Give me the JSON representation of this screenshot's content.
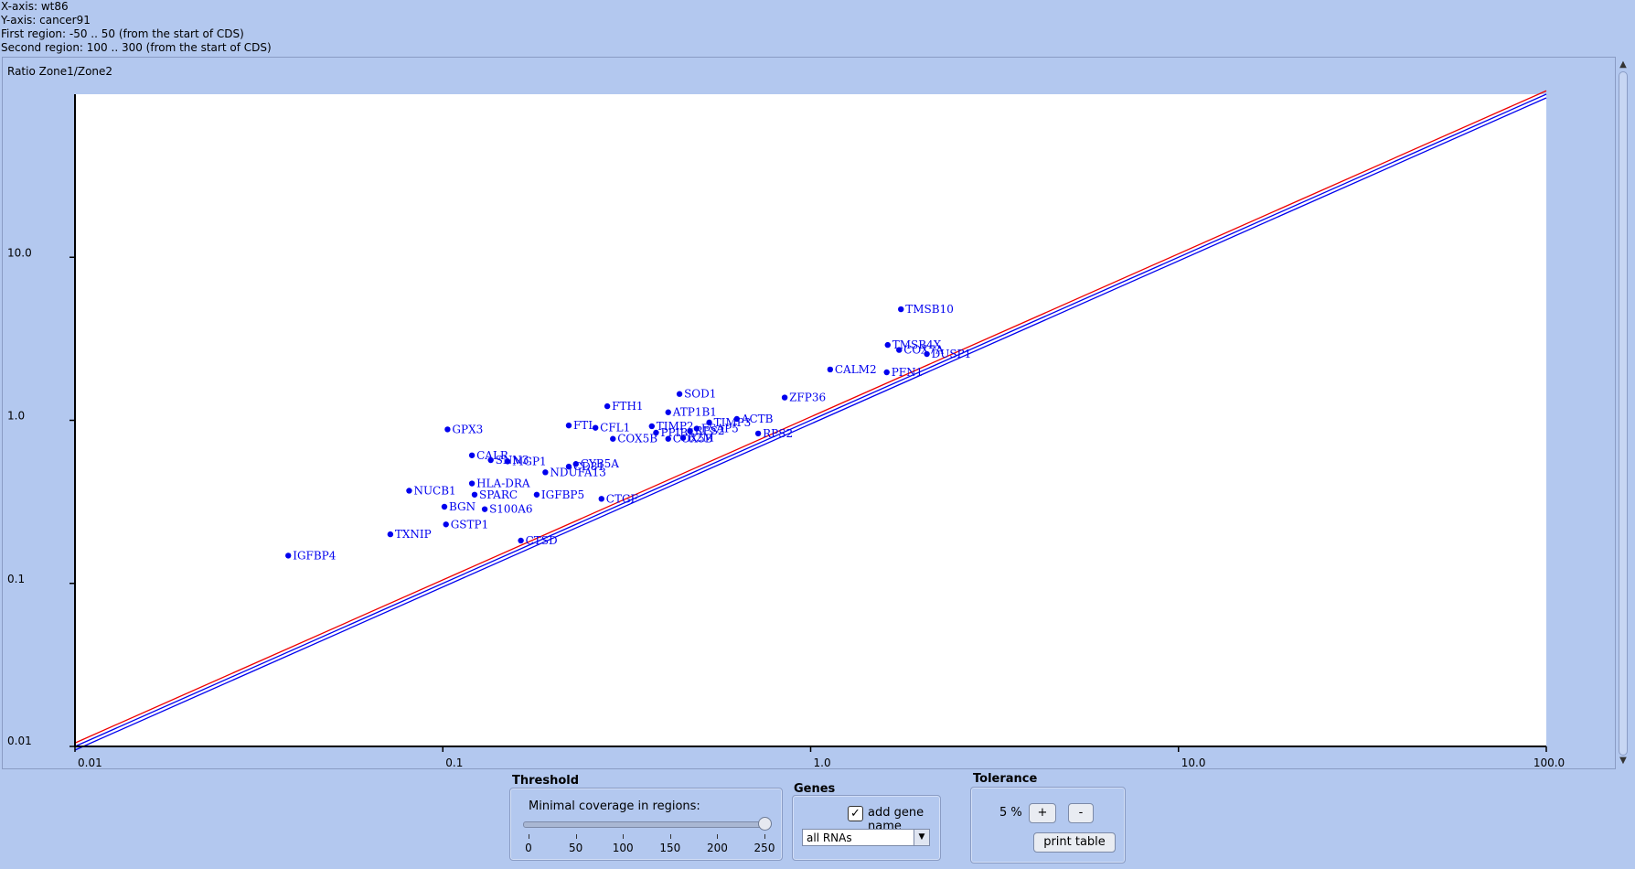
{
  "header": {
    "x_axis": "X-axis: wt86",
    "y_axis": "Y-axis: cancer91",
    "first_region": "First region: -50 .. 50 (from the start of CDS)",
    "second_region": "Second region: 100 .. 300 (from the start of CDS)"
  },
  "chart_data": {
    "type": "scatter",
    "title": "Ratio Zone1/Zone2",
    "x_scale": "log",
    "y_scale": "log",
    "xlim": [
      0.01,
      100.0
    ],
    "ylim": [
      0.01,
      100.0
    ],
    "x_ticks": [
      "0.01",
      "0.1",
      "1.0",
      "10.0",
      "100.0"
    ],
    "y_ticks": [
      "0.01",
      "0.1",
      "1.0",
      "10.0"
    ],
    "point_color": "#0000ee",
    "line_colors": [
      "#ee0000",
      "#0000ee"
    ],
    "reference_lines": [
      {
        "name": "",
        "color": "#ee0000",
        "y_factor": 1.05
      },
      {
        "name": "",
        "color": "#0000ee",
        "y_factor": 1.0
      },
      {
        "name": "",
        "color": "#0000ee",
        "y_factor": 0.95
      }
    ],
    "points": [
      {
        "label": "TMSB10",
        "x": 1.76,
        "y": 4.8
      },
      {
        "label": "TMSB4X",
        "x": 1.62,
        "y": 2.9
      },
      {
        "label": "COX7A",
        "x": 1.74,
        "y": 2.7
      },
      {
        "label": "DUSP1",
        "x": 2.07,
        "y": 2.55
      },
      {
        "label": "CALM2",
        "x": 1.13,
        "y": 2.05
      },
      {
        "label": "PFN1",
        "x": 1.61,
        "y": 1.97
      },
      {
        "label": "ZFP36",
        "x": 0.85,
        "y": 1.38
      },
      {
        "label": "SOD1",
        "x": 0.44,
        "y": 1.45
      },
      {
        "label": "FTH1",
        "x": 0.28,
        "y": 1.22
      },
      {
        "label": "ATP1B1",
        "x": 0.41,
        "y": 1.12
      },
      {
        "label": "ACTB",
        "x": 0.63,
        "y": 1.02
      },
      {
        "label": "TIMP3",
        "x": 0.53,
        "y": 0.97
      },
      {
        "label": "FTL",
        "x": 0.22,
        "y": 0.93
      },
      {
        "label": "CFL1",
        "x": 0.26,
        "y": 0.9
      },
      {
        "label": "TIMP2",
        "x": 0.37,
        "y": 0.92
      },
      {
        "label": "FSAP5",
        "x": 0.49,
        "y": 0.89
      },
      {
        "label": "RPS2",
        "x": 0.47,
        "y": 0.86
      },
      {
        "label": "PPIB",
        "x": 0.38,
        "y": 0.84
      },
      {
        "label": "B2M",
        "x": 0.45,
        "y": 0.78
      },
      {
        "label": "COX5B",
        "x": 0.41,
        "y": 0.77
      },
      {
        "label": "RPS2",
        "x": 0.72,
        "y": 0.83
      },
      {
        "label": "COX5B",
        "x": 0.29,
        "y": 0.77
      },
      {
        "label": "GPX3",
        "x": 0.103,
        "y": 0.88
      },
      {
        "label": "CALR",
        "x": 0.12,
        "y": 0.61
      },
      {
        "label": "SNN3",
        "x": 0.135,
        "y": 0.57
      },
      {
        "label": "MGP1",
        "x": 0.15,
        "y": 0.56
      },
      {
        "label": "CYB5A",
        "x": 0.23,
        "y": 0.54
      },
      {
        "label": "CD81",
        "x": 0.22,
        "y": 0.52
      },
      {
        "label": "NDUFA13",
        "x": 0.19,
        "y": 0.48
      },
      {
        "label": "HLA-DRA",
        "x": 0.12,
        "y": 0.41
      },
      {
        "label": "NUCB1",
        "x": 0.081,
        "y": 0.37
      },
      {
        "label": "SPARC",
        "x": 0.122,
        "y": 0.35
      },
      {
        "label": "IGFBP5",
        "x": 0.18,
        "y": 0.35
      },
      {
        "label": "CTGF",
        "x": 0.27,
        "y": 0.33
      },
      {
        "label": "BGN",
        "x": 0.101,
        "y": 0.295
      },
      {
        "label": "S100A6",
        "x": 0.13,
        "y": 0.285
      },
      {
        "label": "GSTP1",
        "x": 0.102,
        "y": 0.23
      },
      {
        "label": "TXNIP",
        "x": 0.072,
        "y": 0.2
      },
      {
        "label": "CTSD",
        "x": 0.163,
        "y": 0.183
      },
      {
        "label": "IGFBP4",
        "x": 0.038,
        "y": 0.148
      }
    ]
  },
  "threshold": {
    "title": "Threshold",
    "label": "Minimal coverage in regions:",
    "value": 250,
    "max": 250,
    "ticks": [
      "0",
      "50",
      "100",
      "150",
      "200",
      "250"
    ]
  },
  "genes": {
    "title": "Genes",
    "checkbox_label": "add gene name",
    "checked_mark": "✓",
    "select_value": "all RNAs",
    "select_arrow": "▼"
  },
  "tolerance": {
    "title": "Tolerance",
    "value": "5 %",
    "plus_label": "+",
    "minus_label": "-",
    "print_label": "print table"
  },
  "scrollbar": {
    "up_arrow": "▲",
    "down_arrow": "▼"
  }
}
